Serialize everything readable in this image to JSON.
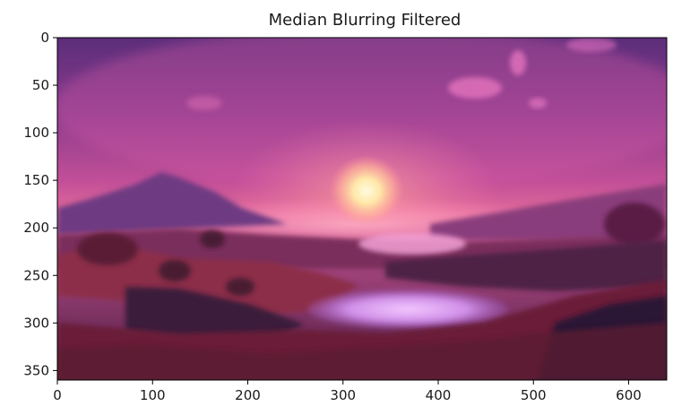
{
  "chart_data": {
    "type": "image",
    "title": "Median Blurring Filtered",
    "xlabel": "",
    "ylabel": "",
    "xlim": [
      0,
      640
    ],
    "ylim": [
      360,
      0
    ],
    "x_ticks": [
      0,
      100,
      200,
      300,
      400,
      500,
      600
    ],
    "y_ticks": [
      0,
      50,
      100,
      150,
      200,
      250,
      300,
      350
    ],
    "grid": false,
    "image_content": "median-blurred sunset over hills and a lake",
    "palette": {
      "sky_top": "#5a2e78",
      "sky_mid": "#b9489a",
      "sky_low": "#e86a9a",
      "sun_core": "#fff6c8",
      "sun_glow": "#ffb08a",
      "mountain": "#6e3a82",
      "hills_dark": "#4b1f3c",
      "hills_red": "#8e2f4a",
      "lake": "#d9a0f0",
      "foreground": "#5a1a30"
    }
  }
}
